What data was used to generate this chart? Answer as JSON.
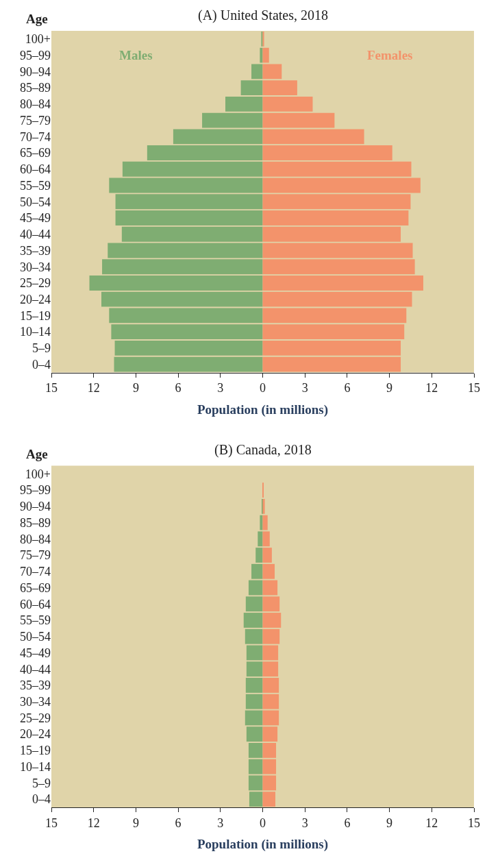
{
  "chart_data": [
    {
      "type": "bar",
      "orientation": "horizontal",
      "stacked": true,
      "title": "(A) United States, 2018",
      "grid": false,
      "xlabel": "Population (in millions)",
      "ylabel": "Age",
      "categories": [
        "100+",
        "95–99",
        "90–94",
        "85–89",
        "80–84",
        "75–79",
        "70–74",
        "65–69",
        "60–64",
        "55–59",
        "50–54",
        "45–49",
        "40–44",
        "35–39",
        "30–34",
        "25–29",
        "20–24",
        "15–19",
        "10–14",
        "5–9",
        "0–4"
      ],
      "series": [
        {
          "name": "Males",
          "color": "#7fad72",
          "values": [
            -0.1,
            -0.2,
            -0.8,
            -1.55,
            -2.65,
            -4.3,
            -6.35,
            -8.2,
            -9.95,
            -10.9,
            -10.45,
            -10.45,
            -10.0,
            -11.0,
            -11.4,
            -12.3,
            -11.45,
            -10.9,
            -10.75,
            -10.5,
            -10.55
          ]
        },
        {
          "name": "Females",
          "color": "#f3936b",
          "values": [
            0.1,
            0.45,
            1.35,
            2.45,
            3.55,
            5.1,
            7.2,
            9.2,
            10.55,
            11.2,
            10.5,
            10.35,
            9.8,
            10.65,
            10.8,
            11.4,
            10.6,
            10.2,
            10.05,
            9.8,
            9.8
          ]
        }
      ],
      "xlim": [
        -15,
        15
      ],
      "xticks": [
        {
          "value": -15,
          "label": "15"
        },
        {
          "value": -12,
          "label": "12"
        },
        {
          "value": -9,
          "label": "9"
        },
        {
          "value": -6,
          "label": "6"
        },
        {
          "value": -3,
          "label": "3"
        },
        0,
        3,
        6,
        9,
        12,
        15
      ],
      "legend": false
    },
    {
      "type": "bar",
      "orientation": "horizontal",
      "stacked": true,
      "title": "(B) Canada, 2018",
      "xlabel": "Population (in millions)",
      "ylabel": "Age",
      "categories": [
        "100+",
        "95–99",
        "90–94",
        "85–89",
        "80–84",
        "75–79",
        "70–74",
        "65–69",
        "60–64",
        "55–59",
        "50–54",
        "45–49",
        "40–44",
        "35–39",
        "30–34",
        "25–29",
        "20–24",
        "15–19",
        "10–14",
        "5–9",
        "0–4"
      ],
      "series": [
        {
          "color": "#7fad72",
          "values": [
            null,
            null,
            -0.05,
            -0.2,
            -0.35,
            -0.5,
            -0.8,
            -1.0,
            -1.2,
            -1.35,
            -1.25,
            -1.15,
            -1.15,
            -1.2,
            -1.2,
            -1.25,
            -1.15,
            -1.0,
            -1.0,
            -1.0,
            -0.95
          ]
        },
        {
          "color": "#f3936b",
          "values": [
            null,
            0.05,
            0.15,
            0.35,
            0.5,
            0.65,
            0.85,
            1.05,
            1.2,
            1.3,
            1.2,
            1.1,
            1.1,
            1.15,
            1.15,
            1.15,
            1.05,
            0.95,
            0.95,
            0.95,
            0.9
          ]
        }
      ],
      "xlim": [
        -15,
        15
      ],
      "xticks": [
        {
          "value": -15,
          "label": "15"
        },
        {
          "value": -12,
          "label": "12"
        },
        {
          "value": -9,
          "label": "9"
        },
        {
          "value": -6,
          "label": "6"
        },
        {
          "value": -3,
          "label": "3"
        },
        0,
        3,
        6,
        9,
        12,
        15
      ],
      "grid": false
    }
  ]
}
